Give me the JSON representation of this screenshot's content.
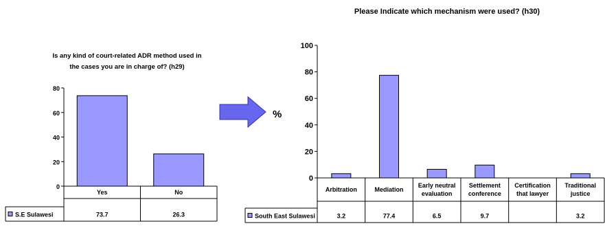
{
  "colors": {
    "bar_fill": "#9999ff",
    "bar_stroke": "#000000",
    "arrow_fill": "#6666ee"
  },
  "arrow": {
    "symbol": "%"
  },
  "chart_data": [
    {
      "type": "bar",
      "title_lines": [
        "Is any kind of court-related ADR method used in",
        "the cases you are in charge of? (h29)"
      ],
      "categories": [
        "Yes",
        "No"
      ],
      "series": [
        {
          "name": "S.E Sulawesi",
          "values": [
            73.7,
            26.3
          ]
        }
      ],
      "value_labels": [
        "73.7",
        "26.3"
      ],
      "ylim": [
        0,
        80
      ],
      "yticks": [
        0,
        20,
        40,
        60,
        80
      ],
      "grid": false,
      "legend": "data-table"
    },
    {
      "type": "bar",
      "title": "Please Indicate which mechanism were used? (h30)",
      "categories": [
        [
          "Arbitration"
        ],
        [
          "Mediation"
        ],
        [
          "Early neutral",
          "evaluation"
        ],
        [
          "Settlement",
          "conference"
        ],
        [
          "Certification",
          "that lawyer"
        ],
        [
          "Traditional",
          "justice"
        ]
      ],
      "series": [
        {
          "name": "South East Sulawesi",
          "values": [
            3.2,
            77.4,
            6.5,
            9.7,
            null,
            3.2
          ]
        }
      ],
      "value_labels": [
        "3.2",
        "77.4",
        "6.5",
        "9.7",
        "",
        "3.2"
      ],
      "ylim": [
        0,
        100
      ],
      "yticks": [
        0,
        20,
        40,
        60,
        80,
        100
      ],
      "grid": false,
      "legend": "data-table"
    }
  ]
}
